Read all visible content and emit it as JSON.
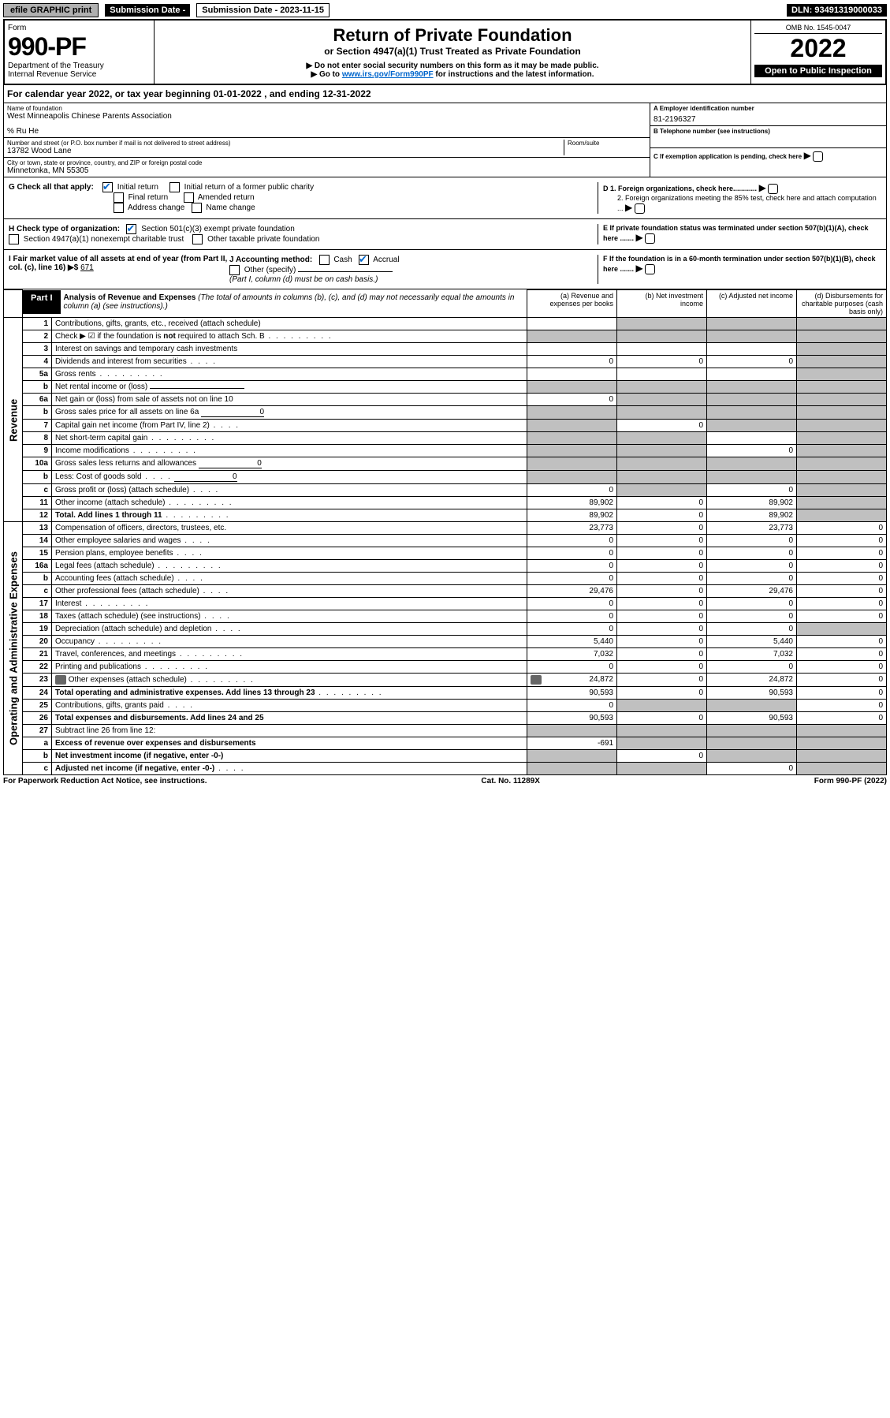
{
  "topbar": {
    "efile": "efile GRAPHIC print",
    "sub_label": "Submission Date - 2023-11-15",
    "dln": "DLN: 93491319000033"
  },
  "header": {
    "form_label": "Form",
    "form_number": "990-PF",
    "dept": "Department of the Treasury",
    "irs": "Internal Revenue Service",
    "title": "Return of Private Foundation",
    "subtitle": "or Section 4947(a)(1) Trust Treated as Private Foundation",
    "note1": "▶ Do not enter social security numbers on this form as it may be made public.",
    "note2_pre": "▶ Go to ",
    "note2_link": "www.irs.gov/Form990PF",
    "note2_post": " for instructions and the latest information.",
    "omb": "OMB No. 1545-0047",
    "year": "2022",
    "open": "Open to Public Inspection"
  },
  "calyear": "For calendar year 2022, or tax year beginning 01-01-2022            , and ending 12-31-2022",
  "info": {
    "name_lbl": "Name of foundation",
    "name": "West Minneapolis Chinese Parents Association",
    "care_of": "% Ru He",
    "addr_lbl": "Number and street (or P.O. box number if mail is not delivered to street address)",
    "addr": "13782 Wood Lane",
    "room_lbl": "Room/suite",
    "city_lbl": "City or town, state or province, country, and ZIP or foreign postal code",
    "city": "Minnetonka, MN  55305",
    "a_lbl": "A Employer identification number",
    "a_val": "81-2196327",
    "b_lbl": "B Telephone number (see instructions)",
    "c_lbl": "C If exemption application is pending, check here",
    "d1": "D 1. Foreign organizations, check here............",
    "d2": "2. Foreign organizations meeting the 85% test, check here and attach computation ...",
    "e": "E  If private foundation status was terminated under section 507(b)(1)(A), check here .......",
    "f": "F  If the foundation is in a 60-month termination under section 507(b)(1)(B), check here .......",
    "g_lbl": "G Check all that apply:",
    "g_initial": "Initial return",
    "g_initial_former": "Initial return of a former public charity",
    "g_final": "Final return",
    "g_amended": "Amended return",
    "g_addr_change": "Address change",
    "g_name_change": "Name change",
    "h_lbl": "H Check type of organization:",
    "h_501c3": "Section 501(c)(3) exempt private foundation",
    "h_4947": "Section 4947(a)(1) nonexempt charitable trust",
    "h_other": "Other taxable private foundation",
    "i_lbl": "I Fair market value of all assets at end of year (from Part II, col. (c), line 16) ▶$",
    "i_val": "671",
    "j_lbl": "J Accounting method:",
    "j_cash": "Cash",
    "j_accrual": "Accrual",
    "j_other": "Other (specify)",
    "j_note": "(Part I, column (d) must be on cash basis.)"
  },
  "part1": {
    "label": "Part I",
    "title": "Analysis of Revenue and Expenses",
    "title_note": " (The total of amounts in columns (b), (c), and (d) may not necessarily equal the amounts in column (a) (see instructions).)",
    "col_a": "(a) Revenue and expenses per books",
    "col_b": "(b) Net investment income",
    "col_c": "(c) Adjusted net income",
    "col_d": "(d) Disbursements for charitable purposes (cash basis only)"
  },
  "sidebar": {
    "revenue": "Revenue",
    "expenses": "Operating and Administrative Expenses"
  },
  "rows": [
    {
      "n": "1",
      "desc": "Contributions, gifts, grants, etc., received (attach schedule)",
      "a": "",
      "b": "shade",
      "c": "shade",
      "d": "shade"
    },
    {
      "n": "2",
      "desc": "Check ▶ ☑ if the foundation is not required to attach Sch. B",
      "dots": true,
      "a": "shade",
      "b": "shade",
      "c": "shade",
      "d": "shade",
      "bold_not": true
    },
    {
      "n": "3",
      "desc": "Interest on savings and temporary cash investments",
      "a": "",
      "b": "",
      "c": "",
      "d": "shade"
    },
    {
      "n": "4",
      "desc": "Dividends and interest from securities",
      "dots": "short",
      "a": "0",
      "b": "0",
      "c": "0",
      "d": "shade"
    },
    {
      "n": "5a",
      "desc": "Gross rents",
      "dots": true,
      "a": "",
      "b": "",
      "c": "",
      "d": "shade"
    },
    {
      "n": "b",
      "desc": "Net rental income or (loss)",
      "underline": true,
      "a": "shade",
      "b": "shade",
      "c": "shade",
      "d": "shade"
    },
    {
      "n": "6a",
      "desc": "Net gain or (loss) from sale of assets not on line 10",
      "a": "0",
      "b": "shade",
      "c": "shade",
      "d": "shade"
    },
    {
      "n": "b",
      "desc": "Gross sales price for all assets on line 6a",
      "underline_val": "0",
      "a": "shade",
      "b": "shade",
      "c": "shade",
      "d": "shade"
    },
    {
      "n": "7",
      "desc": "Capital gain net income (from Part IV, line 2)",
      "dots": "short",
      "a": "shade",
      "b": "0",
      "c": "shade",
      "d": "shade"
    },
    {
      "n": "8",
      "desc": "Net short-term capital gain",
      "dots": true,
      "a": "shade",
      "b": "shade",
      "c": "",
      "d": "shade"
    },
    {
      "n": "9",
      "desc": "Income modifications",
      "dots": true,
      "a": "shade",
      "b": "shade",
      "c": "0",
      "d": "shade"
    },
    {
      "n": "10a",
      "desc": "Gross sales less returns and allowances",
      "underline_val": "0",
      "a": "shade",
      "b": "shade",
      "c": "shade",
      "d": "shade"
    },
    {
      "n": "b",
      "desc": "Less: Cost of goods sold",
      "dots": "short",
      "underline_val": "0",
      "a": "shade",
      "b": "shade",
      "c": "shade",
      "d": "shade"
    },
    {
      "n": "c",
      "desc": "Gross profit or (loss) (attach schedule)",
      "dots": "short",
      "a": "0",
      "b": "shade",
      "c": "0",
      "d": "shade"
    },
    {
      "n": "11",
      "desc": "Other income (attach schedule)",
      "dots": true,
      "a": "89,902",
      "b": "0",
      "c": "89,902",
      "d": "shade"
    },
    {
      "n": "12",
      "desc": "Total. Add lines 1 through 11",
      "dots": true,
      "bold": true,
      "a": "89,902",
      "b": "0",
      "c": "89,902",
      "d": "shade"
    },
    {
      "n": "13",
      "desc": "Compensation of officers, directors, trustees, etc.",
      "a": "23,773",
      "b": "0",
      "c": "23,773",
      "d": "0"
    },
    {
      "n": "14",
      "desc": "Other employee salaries and wages",
      "dots": "short",
      "a": "0",
      "b": "0",
      "c": "0",
      "d": "0"
    },
    {
      "n": "15",
      "desc": "Pension plans, employee benefits",
      "dots": "short",
      "a": "0",
      "b": "0",
      "c": "0",
      "d": "0"
    },
    {
      "n": "16a",
      "desc": "Legal fees (attach schedule)",
      "dots": true,
      "a": "0",
      "b": "0",
      "c": "0",
      "d": "0"
    },
    {
      "n": "b",
      "desc": "Accounting fees (attach schedule)",
      "dots": "short",
      "a": "0",
      "b": "0",
      "c": "0",
      "d": "0"
    },
    {
      "n": "c",
      "desc": "Other professional fees (attach schedule)",
      "dots": "short",
      "a": "29,476",
      "b": "0",
      "c": "29,476",
      "d": "0"
    },
    {
      "n": "17",
      "desc": "Interest",
      "dots": true,
      "a": "0",
      "b": "0",
      "c": "0",
      "d": "0"
    },
    {
      "n": "18",
      "desc": "Taxes (attach schedule) (see instructions)",
      "dots": "short",
      "a": "0",
      "b": "0",
      "c": "0",
      "d": "0"
    },
    {
      "n": "19",
      "desc": "Depreciation (attach schedule) and depletion",
      "dots": "short",
      "a": "0",
      "b": "0",
      "c": "0",
      "d": "shade"
    },
    {
      "n": "20",
      "desc": "Occupancy",
      "dots": true,
      "a": "5,440",
      "b": "0",
      "c": "5,440",
      "d": "0"
    },
    {
      "n": "21",
      "desc": "Travel, conferences, and meetings",
      "dots": true,
      "a": "7,032",
      "b": "0",
      "c": "7,032",
      "d": "0"
    },
    {
      "n": "22",
      "desc": "Printing and publications",
      "dots": true,
      "a": "0",
      "b": "0",
      "c": "0",
      "d": "0"
    },
    {
      "n": "23",
      "desc": "Other expenses (attach schedule)",
      "dots": true,
      "a": "24,872",
      "b": "0",
      "c": "24,872",
      "d": "0",
      "attach": true
    },
    {
      "n": "24",
      "desc": "Total operating and administrative expenses. Add lines 13 through 23",
      "dots": true,
      "bold": true,
      "a": "90,593",
      "b": "0",
      "c": "90,593",
      "d": "0"
    },
    {
      "n": "25",
      "desc": "Contributions, gifts, grants paid",
      "dots": "short",
      "a": "0",
      "b": "shade",
      "c": "shade",
      "d": "0"
    },
    {
      "n": "26",
      "desc": "Total expenses and disbursements. Add lines 24 and 25",
      "bold": true,
      "a": "90,593",
      "b": "0",
      "c": "90,593",
      "d": "0"
    },
    {
      "n": "27",
      "desc": "Subtract line 26 from line 12:",
      "a": "shade",
      "b": "shade",
      "c": "shade",
      "d": "shade"
    },
    {
      "n": "a",
      "desc": "Excess of revenue over expenses and disbursements",
      "bold": true,
      "a": "-691",
      "b": "shade",
      "c": "shade",
      "d": "shade"
    },
    {
      "n": "b",
      "desc": "Net investment income (if negative, enter -0-)",
      "bold": true,
      "a": "shade",
      "b": "0",
      "c": "shade",
      "d": "shade"
    },
    {
      "n": "c",
      "desc": "Adjusted net income (if negative, enter -0-)",
      "bold": true,
      "dots": "short",
      "a": "shade",
      "b": "shade",
      "c": "0",
      "d": "shade"
    }
  ],
  "footer": {
    "left": "For Paperwork Reduction Act Notice, see instructions.",
    "center": "Cat. No. 11289X",
    "right": "Form 990-PF (2022)"
  }
}
